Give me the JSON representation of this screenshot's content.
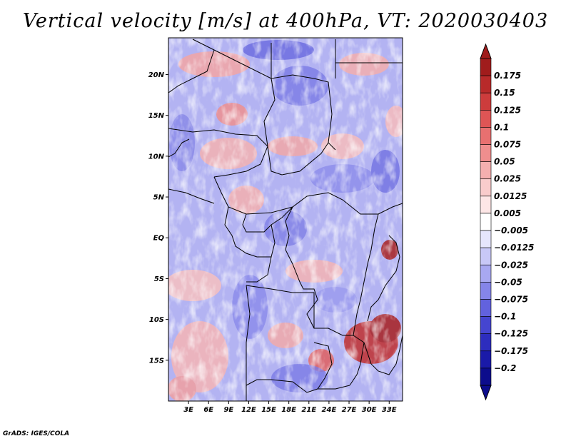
{
  "title": "Vertical velocity [m/s] at 400hPa, VT: 2020030403",
  "credit": "GrADS: IGES/COLA",
  "map": {
    "variable": "Vertical velocity",
    "units": "m/s",
    "level": "400hPa",
    "valid_time": "2020030403",
    "region": "Central Africa",
    "lon_range": [
      0,
      35
    ],
    "lat_range": [
      -20,
      24.5
    ],
    "lat_ticks": [
      {
        "value": 20,
        "label": "20N"
      },
      {
        "value": 15,
        "label": "15N"
      },
      {
        "value": 10,
        "label": "10N"
      },
      {
        "value": 5,
        "label": "5N"
      },
      {
        "value": 0,
        "label": "EQ"
      },
      {
        "value": -5,
        "label": "5S"
      },
      {
        "value": -10,
        "label": "10S"
      },
      {
        "value": -15,
        "label": "15S"
      }
    ],
    "lon_ticks": [
      {
        "value": 3,
        "label": "3E"
      },
      {
        "value": 6,
        "label": "6E"
      },
      {
        "value": 9,
        "label": "9E"
      },
      {
        "value": 12,
        "label": "12E"
      },
      {
        "value": 15,
        "label": "15E"
      },
      {
        "value": 18,
        "label": "18E"
      },
      {
        "value": 21,
        "label": "21E"
      },
      {
        "value": 24,
        "label": "24E"
      },
      {
        "value": 27,
        "label": "27E"
      },
      {
        "value": 30,
        "label": "30E"
      },
      {
        "value": 33,
        "label": "33E"
      }
    ]
  },
  "colorbar": {
    "labels": [
      "0.175",
      "0.15",
      "0.125",
      "0.1",
      "0.075",
      "0.05",
      "0.025",
      "0.0125",
      "0.005",
      "-0.005",
      "-0.0125",
      "-0.025",
      "-0.05",
      "-0.075",
      "-0.1",
      "-0.125",
      "-0.175",
      "-0.2"
    ],
    "colors": [
      "#a01c1c",
      "#b82a2a",
      "#cd3c3c",
      "#de5555",
      "#e87070",
      "#ef8e8e",
      "#f5afaf",
      "#f9cccc",
      "#fde6e6",
      "#ffffff",
      "#e6e6fc",
      "#c8c8f7",
      "#a8a8f1",
      "#8585e9",
      "#6262de",
      "#4545d0",
      "#2d2dbe",
      "#1a1aa8",
      "#0c0c8c"
    ],
    "bottom_arrow_color": "#0c0c8c",
    "top_arrow_color": "#a01c1c"
  }
}
